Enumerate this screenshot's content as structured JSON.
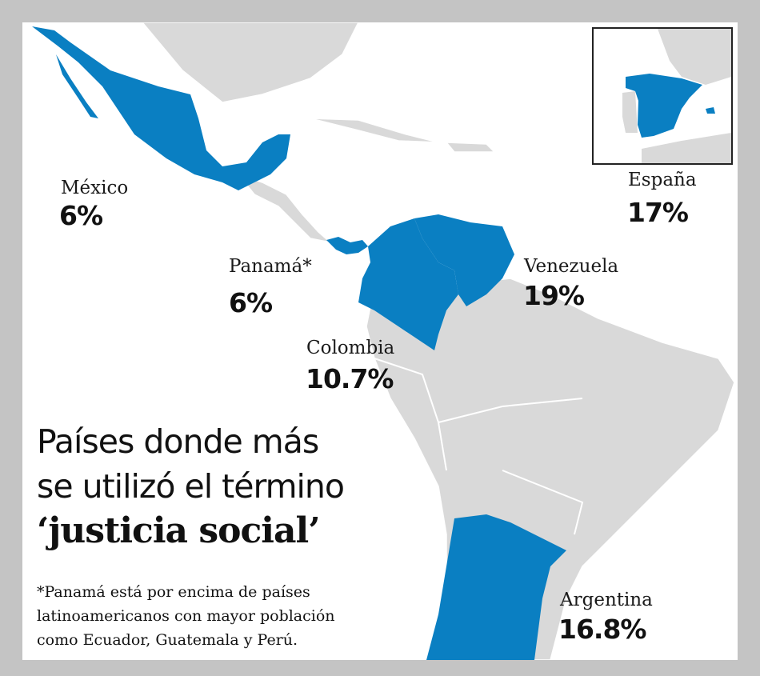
{
  "colors": {
    "highlight": "#0a7fc2",
    "land": "#d9d9d9",
    "frame": "#c4c4c4"
  },
  "countries": [
    {
      "name": "México",
      "value": "6%"
    },
    {
      "name": "Panamá*",
      "value": "6%"
    },
    {
      "name": "Colombia",
      "value": "10.7%"
    },
    {
      "name": "Venezuela",
      "value": "19%"
    },
    {
      "name": "España",
      "value": "17%"
    },
    {
      "name": "Argentina",
      "value": "16.8%"
    }
  ],
  "title": {
    "line1": "Países donde más",
    "line2": "se utilizó el término",
    "line3": "‘justicia social’"
  },
  "footnote": {
    "line1": "*Panamá está por encima de países",
    "line2": "latinoamericanos con mayor población",
    "line3": "como Ecuador, Guatemala y Perú."
  }
}
